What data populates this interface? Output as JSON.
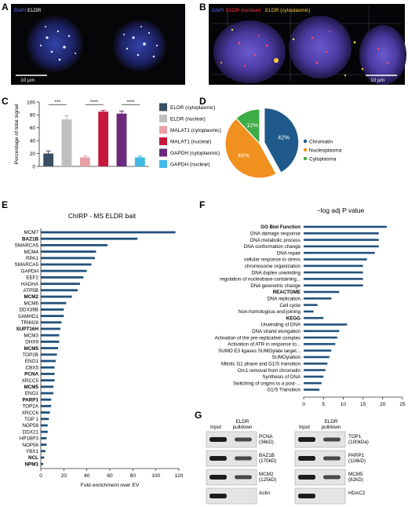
{
  "panels": {
    "A": {
      "label": "A",
      "legend": [
        "DAPI",
        "ELDR"
      ],
      "scale": "10 µm"
    },
    "B": {
      "label": "B",
      "legend": [
        "DAPI",
        "ELDR (nuclear)",
        "ELDR (cytoplasmic)"
      ],
      "scale": "10 µm"
    },
    "C": {
      "label": "C"
    },
    "D": {
      "label": "D"
    },
    "E": {
      "label": "E"
    },
    "F": {
      "label": "F"
    },
    "G": {
      "label": "G"
    }
  },
  "colors": {
    "dapi_label": "#5a6bff",
    "eldr_label": "#ffffff",
    "eldr_nuclear_label": "#ff3a3a",
    "eldr_cyto_label": "#ffd23a",
    "bar_blue": "#23527c",
    "pie_chromatin": "#1f5a8a",
    "pie_nucleoplasma": "#f0901e",
    "pie_cytoplasma": "#3dad46"
  },
  "chart_data": [
    {
      "panel": "C",
      "type": "bar",
      "ylabel": "Percentage of total signal",
      "ylim": [
        0,
        100
      ],
      "yticks": [
        0,
        20,
        40,
        60,
        80,
        100
      ],
      "categories": [
        "ELDR (cytoplasmic)",
        "ELDR (nuclear)",
        "MALAT1 (cytoplasmic)",
        "MALAT1 (nuclear)",
        "GAPDH (cytoplasmic)",
        "GAPDH (nuclear)"
      ],
      "values": [
        20,
        73,
        14,
        85,
        82,
        14
      ],
      "errors": [
        4,
        6,
        2,
        2,
        4,
        2
      ],
      "colors": [
        "#3a4f60",
        "#bfbfbf",
        "#e8a0a6",
        "#c5183f",
        "#6b2a7c",
        "#41b8e8"
      ],
      "significance": [
        "***",
        "****",
        "****"
      ],
      "legend_placement": "right"
    },
    {
      "panel": "D",
      "type": "pie",
      "labels": [
        "Chromatin",
        "Nucleoplasma",
        "Cytoplasma"
      ],
      "values": [
        42,
        46,
        12
      ],
      "value_labels": [
        "42%",
        "46%",
        "12%"
      ],
      "colors": [
        "#1f5a8a",
        "#f0901e",
        "#3dad46"
      ],
      "legend_placement": "right"
    },
    {
      "panel": "E",
      "type": "bar",
      "orientation": "horizontal",
      "title": "ChIRP - MS ELDR bait",
      "xlabel": "Fold enrichment over EV",
      "xlim": [
        0,
        120
      ],
      "xticks": [
        0,
        20,
        40,
        60,
        80,
        100,
        120
      ],
      "categories": [
        "MCM7",
        "BAZ1B",
        "SMARCA5",
        "MCM4",
        "RPA1",
        "SMARCA5",
        "GAPDH",
        "EEF2",
        "HADHA",
        "ATP5B",
        "MCM2",
        "MCM6",
        "DDX39B",
        "SAMHD1",
        "TRIM28",
        "SUPT16H",
        "MCM3",
        "DHX9",
        "MCM5",
        "TOP2B",
        "ENO1",
        "CBX5",
        "PCNA",
        "XRCC5",
        "MCM5",
        "ENO1",
        "PARP1",
        "TOP2A",
        "XRCC6",
        "TOP 1",
        "NOP58",
        "DDX21",
        "HP1BP3",
        "NOP56",
        "YBX1",
        "NCL",
        "NPM1"
      ],
      "bold": [
        "BAZ1B",
        "MCM2",
        "SUPT16H",
        "PCNA",
        "MCM5",
        "PARP1",
        "NCL",
        "NPM1"
      ],
      "values": [
        117,
        84,
        58,
        48,
        47,
        44,
        40,
        37,
        34,
        32,
        27,
        22,
        20,
        20,
        18,
        17,
        16,
        16,
        15,
        14,
        13,
        12,
        12,
        12,
        11,
        11,
        9,
        9,
        8,
        7,
        6,
        6,
        5,
        5,
        4,
        3,
        2
      ]
    },
    {
      "panel": "F",
      "type": "bar",
      "orientation": "horizontal",
      "title": "−log adj P value",
      "xlim": [
        0,
        25
      ],
      "xticks": [
        0,
        5,
        10,
        15,
        20,
        25
      ],
      "categories": [
        "GO Biol Function",
        "DNA damage response",
        "DNA metabolic process",
        "DNA conformation change",
        "DNA repair",
        "cellular response to stress",
        "chromosome organization",
        "DNA duplex unwinding",
        "regulation of nucleobase-containing...",
        "DNA geometric change",
        "REACTOME",
        "DNA replication",
        "Cell cycle",
        "Non-homologous end-joining",
        "KEGG",
        "Unwinding of DNA",
        "DNA strand elongation",
        "Activation of the pre-replicative complex",
        "Activation of ATR in response to...",
        "SUMO E3 ligases SUMOylate target...",
        "SUMOylation",
        "Mitotic G1 phase and G1/S transition",
        "Orc1 removal from chromatin",
        "Synthesis of DNA",
        "Switching of origins to a post-...",
        "G1/S Transition"
      ],
      "bold": [
        "GO Biol Function",
        "REACTOME",
        "KEGG"
      ],
      "values": [
        21,
        19,
        19,
        19,
        18,
        16,
        15,
        15,
        15,
        15,
        9,
        7,
        3.5,
        2.5,
        5,
        11,
        9,
        8.5,
        8,
        7,
        6.5,
        6,
        5.5,
        5,
        4.5,
        4
      ]
    }
  ],
  "blots": {
    "left": {
      "header_input": "Input",
      "header_pulldown": "ELDR\npulldown",
      "rows": [
        {
          "name": "PCNA",
          "size": "(36kD)"
        },
        {
          "name": "BAZ1B",
          "size": "(170kD)"
        },
        {
          "name": "MCM2",
          "size": "(125kD)"
        },
        {
          "name": "Actin",
          "size": ""
        }
      ]
    },
    "right": {
      "header_input": "Input",
      "header_pulldown": "ELDR\npulldown",
      "rows": [
        {
          "name": "TOP1",
          "size": "(100kDa)"
        },
        {
          "name": "PARP1",
          "size": "(116kD)"
        },
        {
          "name": "MCM5",
          "size": "(82kD)"
        },
        {
          "name": "HDAC2",
          "size": ""
        }
      ]
    }
  }
}
